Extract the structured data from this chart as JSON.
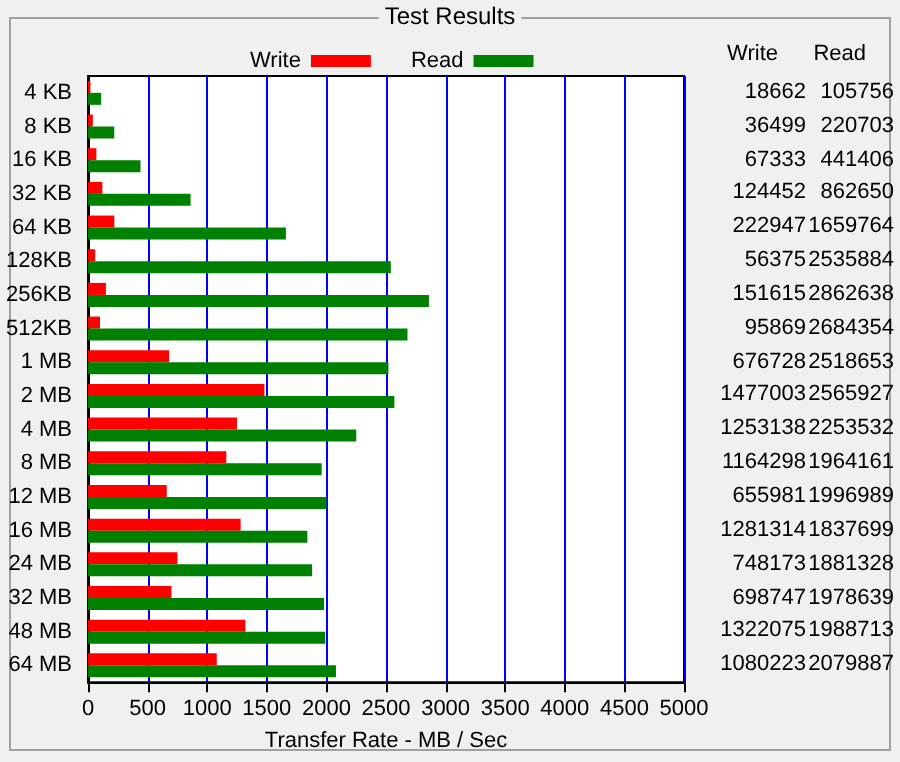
{
  "chart_data": [
    {
      "type": "bar",
      "orientation": "horizontal",
      "title": "Test Results",
      "xlabel": "Transfer Rate - MB / Sec",
      "categories": [
        "4 KB",
        "8 KB",
        "16 KB",
        "32 KB",
        "64 KB",
        "128KB",
        "256KB",
        "512KB",
        "1 MB",
        "2 MB",
        "4 MB",
        "8 MB",
        "12 MB",
        "16 MB",
        "24 MB",
        "32 MB",
        "48 MB",
        "64 MB"
      ],
      "series": [
        {
          "name": "Write",
          "color": "#ff0000",
          "values": [
            20,
            40,
            70,
            120,
            220,
            60,
            150,
            100,
            680,
            1480,
            1250,
            1160,
            660,
            1280,
            750,
            700,
            1320,
            1080
          ]
        },
        {
          "name": "Read",
          "color": "#008000",
          "values": [
            110,
            220,
            440,
            860,
            1660,
            2540,
            2860,
            2680,
            2520,
            2570,
            2250,
            1960,
            2000,
            1840,
            1880,
            1980,
            1990,
            2080
          ]
        }
      ],
      "xlim": [
        0,
        5000
      ],
      "xticks": [
        0,
        500,
        1000,
        1500,
        2000,
        2500,
        3000,
        3500,
        4000,
        4500,
        5000
      ],
      "grid": "x",
      "legend": "top"
    },
    {
      "type": "other",
      "annotations": [
        "Write",
        "Read",
        "18662",
        "105756",
        "36499",
        "220703",
        "67333",
        "441406",
        "124452",
        "862650",
        "222947",
        "1659764",
        "56375",
        "2535884",
        "151615",
        "2862638",
        "95869",
        "2684354",
        "676728",
        "2518653",
        "1477003",
        "2565927",
        "1253138",
        "2253532",
        "1164298",
        "1964161",
        "655981",
        "1996989",
        "1281314",
        "1837699",
        "748173",
        "1881328",
        "698747",
        "1978639",
        "1322075",
        "1988713",
        "1080223",
        "2079887"
      ]
    }
  ]
}
